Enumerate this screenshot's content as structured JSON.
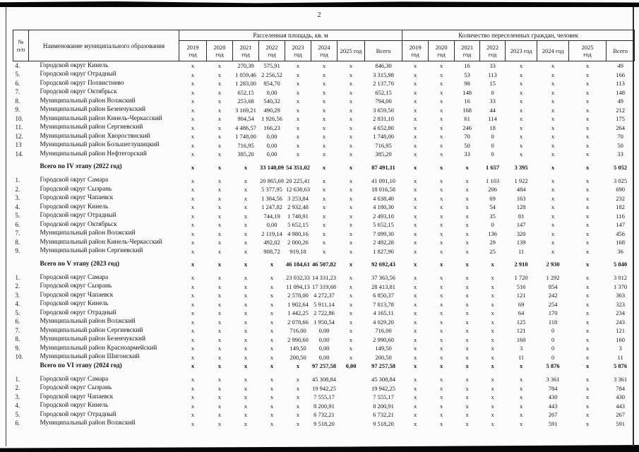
{
  "page": {
    "number": "2"
  },
  "table": {
    "header": {
      "col_num": "№\nп/п",
      "col_name": "Наименование муниципального образования",
      "group_area": "Расселенная площадь, кв. м",
      "group_people": "Количество переселенных граждан, человек",
      "area_years": [
        "2019\nгод",
        "2020\nгод",
        "2021\nгод",
        "2022\nгод",
        "2023\nгод",
        "2024\nгод",
        "2025 год",
        "Всего"
      ],
      "people_years": [
        "2019\nгод",
        "2020\nгод",
        "2021\nгод",
        "2022\nгод",
        "2023 год",
        "2024 год",
        "2025\nгод",
        "Всего"
      ]
    },
    "rows": [
      {
        "num": "4.",
        "name": "Городской округ Кинель",
        "area": [
          "x",
          "x",
          "270,39",
          "575,91",
          "x",
          "x",
          "x",
          "846,30"
        ],
        "people": [
          "x",
          "x",
          "16",
          "33",
          "x",
          "x",
          "x",
          "49"
        ]
      },
      {
        "num": "5.",
        "name": "Городской округ Отрадный",
        "area": [
          "x",
          "x",
          "1 059,46",
          "2 256,52",
          "x",
          "x",
          "x",
          "3 315,98"
        ],
        "people": [
          "x",
          "x",
          "53",
          "113",
          "x",
          "x",
          "x",
          "166"
        ]
      },
      {
        "num": "6.",
        "name": "Городской округ Похвистнево",
        "area": [
          "x",
          "x",
          "1 283,00",
          "854,70",
          "x",
          "x",
          "x",
          "2 137,70"
        ],
        "people": [
          "x",
          "x",
          "98",
          "15",
          "x",
          "x",
          "x",
          "113"
        ]
      },
      {
        "num": "7.",
        "name": "Городской округ Октябрьск",
        "area": [
          "x",
          "x",
          "652,15",
          "0,00",
          "x",
          "x",
          "x",
          "652,15"
        ],
        "people": [
          "x",
          "x",
          "148",
          "0",
          "x",
          "x",
          "x",
          "148"
        ]
      },
      {
        "num": "8.",
        "name": "Муниципальный район Волжский",
        "area": [
          "x",
          "x",
          "253,68",
          "540,32",
          "x",
          "x",
          "x",
          "794,00"
        ],
        "people": [
          "x",
          "x",
          "16",
          "33",
          "x",
          "x",
          "x",
          "49"
        ]
      },
      {
        "num": "9.",
        "name": "Муниципальный район Безенчукский",
        "area": [
          "x",
          "x",
          "3 169,21",
          "490,29",
          "x",
          "x",
          "x",
          "3 659,50"
        ],
        "people": [
          "x",
          "x",
          "168",
          "44",
          "x",
          "x",
          "x",
          "212"
        ]
      },
      {
        "num": "10.",
        "name": "Муниципальный район Кинель-Черкасский",
        "area": [
          "x",
          "x",
          "904,54",
          "1 926,56",
          "x",
          "x",
          "x",
          "2 831,10"
        ],
        "people": [
          "x",
          "x",
          "61",
          "114",
          "x",
          "x",
          "x",
          "175"
        ]
      },
      {
        "num": "11.",
        "name": "Муниципальный район Сергиевский",
        "area": [
          "x",
          "x",
          "4 486,57",
          "166,23",
          "x",
          "x",
          "x",
          "4 652,80"
        ],
        "people": [
          "x",
          "x",
          "246",
          "18",
          "x",
          "x",
          "x",
          "264"
        ]
      },
      {
        "num": "12.",
        "name": "Муниципальный район Хворостянский",
        "area": [
          "x",
          "x",
          "1 748,00",
          "0,00",
          "x",
          "x",
          "x",
          "1 748,00"
        ],
        "people": [
          "x",
          "x",
          "70",
          "0",
          "x",
          "x",
          "x",
          "70"
        ]
      },
      {
        "num": "13",
        "name": "Муниципальный район Большеглушицкий",
        "area": [
          "x",
          "x",
          "716,95",
          "0,00",
          "x",
          "x",
          "x",
          "716,95"
        ],
        "people": [
          "x",
          "x",
          "50",
          "0",
          "x",
          "x",
          "x",
          "50"
        ]
      },
      {
        "num": "14.",
        "name": "Муниципальный район Нефтегорский",
        "area": [
          "x",
          "x",
          "385,20",
          "0,00",
          "x",
          "x",
          "x",
          "385,20"
        ],
        "people": [
          "x",
          "x",
          "33",
          "0",
          "x",
          "x",
          "x",
          "33"
        ]
      },
      {
        "spacer": true
      },
      {
        "label": "Всего по IV этапу (2022 год)",
        "bold": true,
        "area": [
          "x",
          "x",
          "x",
          "33 140,09",
          "54 351,02",
          "x",
          "x",
          "87 491,11"
        ],
        "people": [
          "x",
          "x",
          "x",
          "1 657",
          "3 395",
          "x",
          "x",
          "5 052"
        ]
      },
      {
        "spacer": true
      },
      {
        "num": "1.",
        "name": "Городской округ Самара",
        "area": [
          "x",
          "x",
          "x",
          "20 865,69",
          "20 225,41",
          "x",
          "x",
          "41 091,10"
        ],
        "people": [
          "x",
          "x",
          "x",
          "1 103",
          "1 922",
          "x",
          "x",
          "3 025"
        ]
      },
      {
        "num": "2.",
        "name": "Городской округ Сызрань",
        "area": [
          "x",
          "x",
          "x",
          "5 377,95",
          "12 638,63",
          "x",
          "x",
          "18 016,58"
        ],
        "people": [
          "x",
          "x",
          "x",
          "206",
          "484",
          "x",
          "x",
          "690"
        ]
      },
      {
        "num": "3.",
        "name": "Городской округ Чапаевск",
        "area": [
          "x",
          "x",
          "x",
          "1 384,56",
          "3 253,84",
          "x",
          "x",
          "4 638,40"
        ],
        "people": [
          "x",
          "x",
          "x",
          "69",
          "163",
          "x",
          "x",
          "232"
        ]
      },
      {
        "num": "4.",
        "name": "Городской округ Кинель",
        "area": [
          "x",
          "x",
          "x",
          "1 247,82",
          "2 932,48",
          "x",
          "x",
          "4 180,30"
        ],
        "people": [
          "x",
          "x",
          "x",
          "54",
          "128",
          "x",
          "x",
          "182"
        ]
      },
      {
        "num": "5.",
        "name": "Городской округ Отрадный",
        "area": [
          "x",
          "x",
          "x",
          "744,19",
          "1 748,91",
          "x",
          "x",
          "2 493,10"
        ],
        "people": [
          "x",
          "x",
          "x",
          "35",
          "81",
          "x",
          "x",
          "116"
        ]
      },
      {
        "num": "6.",
        "name": "Городской округ Октябрьск",
        "area": [
          "x",
          "x",
          "x",
          "0,00",
          "5 652,15",
          "x",
          "x",
          "5 652,15"
        ],
        "people": [
          "x",
          "x",
          "x",
          "0",
          "147",
          "x",
          "x",
          "147"
        ]
      },
      {
        "num": "7.",
        "name": "Муниципальный район Волжский",
        "area": [
          "x",
          "x",
          "x",
          "2 119,14",
          "4 980,16",
          "x",
          "x",
          "7 099,30"
        ],
        "people": [
          "x",
          "x",
          "x",
          "136",
          "320",
          "x",
          "x",
          "456"
        ]
      },
      {
        "num": "8.",
        "name": "Муниципальный район Кинель-Черкасский",
        "area": [
          "x",
          "x",
          "x",
          "492,02",
          "2 000,26",
          "x",
          "x",
          "2 492,28"
        ],
        "people": [
          "x",
          "x",
          "x",
          "29",
          "139",
          "x",
          "x",
          "168"
        ]
      },
      {
        "num": "9.",
        "name": "Муниципальный район Сергиевский",
        "area": [
          "x",
          "x",
          "x",
          "908,72",
          "919,18",
          "x",
          "x",
          "1 827,90"
        ],
        "people": [
          "x",
          "x",
          "x",
          "25",
          "11",
          "x",
          "x",
          "36"
        ]
      },
      {
        "spacer": true
      },
      {
        "label": "Всего по V этапу (2023 год)",
        "bold": true,
        "area": [
          "x",
          "x",
          "x",
          "x",
          "46 184,61",
          "46 507,82",
          "x",
          "92 692,43"
        ],
        "people": [
          "x",
          "x",
          "x",
          "x",
          "2 910",
          "2 930",
          "x",
          "5 840"
        ]
      },
      {
        "spacer": true
      },
      {
        "num": "1.",
        "name": "Городской округ Самара",
        "area": [
          "x",
          "x",
          "x",
          "x",
          "23 032,33",
          "14 331,23",
          "x",
          "37 363,56"
        ],
        "people": [
          "x",
          "x",
          "x",
          "x",
          "1 720",
          "1 292",
          "x",
          "3 012"
        ]
      },
      {
        "num": "2.",
        "name": "Городской округ Сызрань",
        "area": [
          "x",
          "x",
          "x",
          "x",
          "11 094,13",
          "17 319,68",
          "x",
          "28 413,81"
        ],
        "people": [
          "x",
          "x",
          "x",
          "x",
          "516",
          "854",
          "x",
          "1 370"
        ]
      },
      {
        "num": "3.",
        "name": "Городской округ Чапаевск",
        "area": [
          "x",
          "x",
          "x",
          "x",
          "2 578,00",
          "4 272,37",
          "x",
          "6 850,37"
        ],
        "people": [
          "x",
          "x",
          "x",
          "x",
          "121",
          "242",
          "x",
          "363"
        ]
      },
      {
        "num": "4.",
        "name": "Городской округ Кинель",
        "area": [
          "x",
          "x",
          "x",
          "x",
          "1 902,64",
          "5 911,14",
          "x",
          "7 813,78"
        ],
        "people": [
          "x",
          "x",
          "x",
          "x",
          "69",
          "254",
          "x",
          "323"
        ]
      },
      {
        "num": "5.",
        "name": "Городской округ Отрадный",
        "area": [
          "x",
          "x",
          "x",
          "x",
          "1 442,25",
          "2 722,86",
          "x",
          "4 165,11"
        ],
        "people": [
          "x",
          "x",
          "x",
          "x",
          "64",
          "170",
          "x",
          "234"
        ]
      },
      {
        "num": "6.",
        "name": "Муниципальный район Волжский",
        "area": [
          "x",
          "x",
          "x",
          "x",
          "2 078,66",
          "1 950,54",
          "x",
          "4 029,20"
        ],
        "people": [
          "x",
          "x",
          "x",
          "x",
          "125",
          "118",
          "x",
          "243"
        ]
      },
      {
        "num": "7.",
        "name": "Муниципальный район Сергиевский",
        "area": [
          "x",
          "x",
          "x",
          "x",
          "716,00",
          "0,00",
          "x",
          "716,00"
        ],
        "people": [
          "x",
          "x",
          "x",
          "x",
          "121",
          "0",
          "x",
          "121"
        ]
      },
      {
        "num": "8.",
        "name": "Муниципальный район Безенчукский",
        "area": [
          "x",
          "x",
          "x",
          "x",
          "2 990,60",
          "0,00",
          "x",
          "2 990,60"
        ],
        "people": [
          "x",
          "x",
          "x",
          "x",
          "160",
          "0",
          "x",
          "160"
        ]
      },
      {
        "num": "9.",
        "name": "Муниципальный район Красноармейский",
        "area": [
          "x",
          "x",
          "x",
          "x",
          "149,50",
          "0,00",
          "x",
          "149,50"
        ],
        "people": [
          "x",
          "x",
          "x",
          "x",
          "3",
          "0",
          "x",
          "3"
        ]
      },
      {
        "num": "10.",
        "name": "Муниципальный район Шигонский",
        "area": [
          "x",
          "x",
          "x",
          "x",
          "200,50",
          "0,00",
          "x",
          "200,50"
        ],
        "people": [
          "x",
          "x",
          "x",
          "x",
          "11",
          "0",
          "x",
          "11"
        ]
      },
      {
        "label": "Всего по VI этапу (2024 год)",
        "bold": true,
        "area": [
          "x",
          "x",
          "x",
          "x",
          "x",
          "97 257,58",
          "0,00",
          "97 257,58"
        ],
        "people": [
          "x",
          "x",
          "x",
          "x",
          "x",
          "5 876",
          "x",
          "5 876"
        ]
      },
      {
        "spacer": true
      },
      {
        "num": "1.",
        "name": "Городской округ Самара",
        "area": [
          "x",
          "x",
          "x",
          "x",
          "x",
          "45 308,84",
          "",
          "45 308,84"
        ],
        "people": [
          "x",
          "x",
          "x",
          "x",
          "x",
          "3 361",
          "x",
          "3 361"
        ]
      },
      {
        "num": "2.",
        "name": "Городской округ Сызрань",
        "area": [
          "x",
          "x",
          "x",
          "x",
          "x",
          "19 942,25",
          "",
          "19 942,25"
        ],
        "people": [
          "x",
          "x",
          "x",
          "x",
          "x",
          "784",
          "x",
          "784"
        ]
      },
      {
        "num": "3.",
        "name": "Городской округ Чапаевск",
        "area": [
          "x",
          "x",
          "x",
          "x",
          "x",
          "7 555,17",
          "",
          "7 555,17"
        ],
        "people": [
          "x",
          "x",
          "x",
          "x",
          "x",
          "430",
          "x",
          "430"
        ]
      },
      {
        "num": "4.",
        "name": "Городской округ Кинель",
        "area": [
          "x",
          "x",
          "x",
          "x",
          "x",
          "8 200,91",
          "",
          "8 200,91"
        ],
        "people": [
          "x",
          "x",
          "x",
          "x",
          "x",
          "443",
          "x",
          "443"
        ]
      },
      {
        "num": "5.",
        "name": "Городской округ Отрадный",
        "area": [
          "x",
          "x",
          "x",
          "x",
          "x",
          "6 732,21",
          "",
          "6 732,21"
        ],
        "people": [
          "x",
          "x",
          "x",
          "x",
          "x",
          "267",
          "x",
          "267"
        ]
      },
      {
        "num": "6.",
        "name": "Муниципальный район Волжский",
        "area": [
          "x",
          "x",
          "x",
          "x",
          "x",
          "9 518,20",
          "",
          "9 518,20"
        ],
        "people": [
          "x",
          "x",
          "x",
          "x",
          "x",
          "591",
          "x",
          "591"
        ]
      }
    ]
  }
}
